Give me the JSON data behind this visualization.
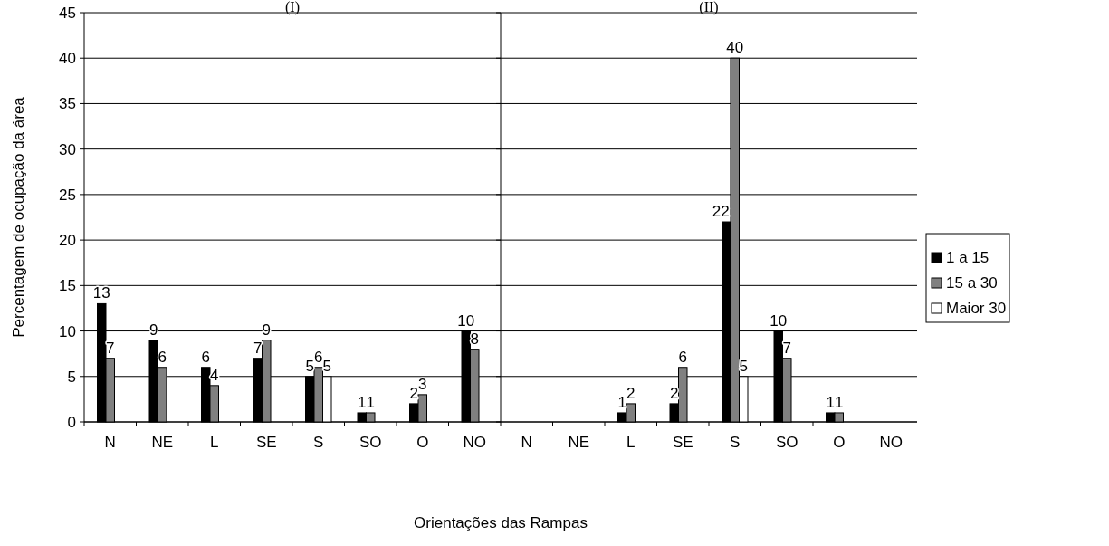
{
  "chart_data": [
    {
      "type": "bar",
      "title": "(I)",
      "ylabel": "Percentagem de ocupação da área",
      "xlabel": "Orientações das Rampas",
      "categories": [
        "N",
        "NE",
        "L",
        "SE",
        "S",
        "SO",
        "O",
        "NO"
      ],
      "series": [
        {
          "color": "#000000",
          "values": [
            13,
            9,
            6,
            7,
            5,
            1,
            2,
            10
          ]
        },
        {
          "color": "#808080",
          "values": [
            7,
            6,
            4,
            9,
            6,
            1,
            3,
            8
          ]
        },
        {
          "color": "#ffffff",
          "values": [
            null,
            null,
            null,
            null,
            5,
            null,
            null,
            null
          ]
        }
      ],
      "ylim": [
        0,
        45
      ],
      "yticks": [
        0,
        5,
        10,
        15,
        20,
        25,
        30,
        35,
        40,
        45
      ],
      "grid": "y",
      "data_labels": true,
      "legend": false
    },
    {
      "type": "bar",
      "title": "(II)",
      "categories": [
        "N",
        "NE",
        "L",
        "SE",
        "S",
        "SO",
        "O",
        "NO"
      ],
      "series": [
        {
          "name": "1 a 15",
          "color": "#000000",
          "values": [
            null,
            null,
            1,
            2,
            22,
            10,
            1,
            null
          ]
        },
        {
          "name": "15 a 30",
          "color": "#808080",
          "values": [
            null,
            null,
            2,
            6,
            40,
            7,
            1,
            null
          ]
        },
        {
          "name": "Maior 30",
          "color": "#ffffff",
          "values": [
            null,
            null,
            null,
            null,
            5,
            null,
            null,
            null
          ]
        }
      ],
      "ylim": [
        0,
        45
      ],
      "yticks": [
        0,
        5,
        10,
        15,
        20,
        25,
        30,
        35,
        40,
        45
      ],
      "grid": "y",
      "data_labels": true,
      "legend": "right",
      "tick_labels": "x"
    }
  ]
}
